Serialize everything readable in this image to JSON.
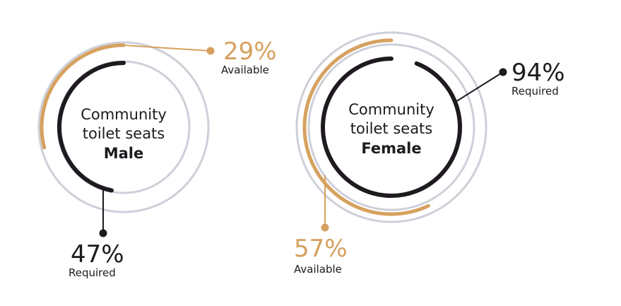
{
  "colors": {
    "available": "#d6a15f",
    "required": "#1e1a1f",
    "track": "#cdd0d8",
    "text": "#1e1a1f"
  },
  "chart_data": [
    {
      "type": "donut",
      "title_lines": [
        "Community",
        "toilet seats",
        "Male"
      ],
      "series": [
        {
          "name": "Available",
          "value": 29
        },
        {
          "name": "Required",
          "value": 47
        }
      ]
    },
    {
      "type": "donut",
      "title_lines": [
        "Community",
        "toilet seats",
        "Female"
      ],
      "series": [
        {
          "name": "Available",
          "value": 57
        },
        {
          "name": "Required",
          "value": 94
        }
      ]
    }
  ],
  "labels": {
    "male_available_pct": "29%",
    "male_available_text": "Available",
    "male_required_pct": "47%",
    "male_required_text": "Required",
    "female_required_pct": "94%",
    "female_required_text": "Required",
    "female_available_pct": "57%",
    "female_available_text": "Available"
  }
}
